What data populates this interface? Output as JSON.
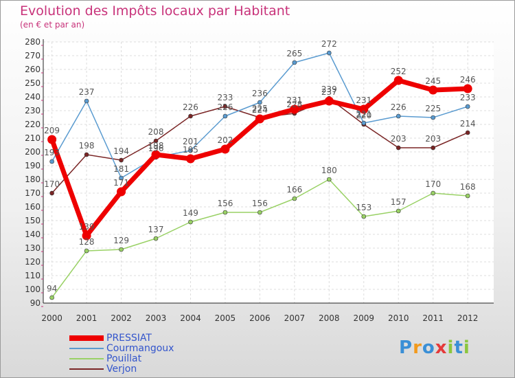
{
  "header": {
    "title": "Evolution des Impôts locaux par Habitant",
    "subtitle": "(en € et par an)"
  },
  "logo": {
    "text": "Proxiti",
    "colors": [
      "#3a8fd6",
      "#f29a1d",
      "#3a8fd6",
      "#e53a3a",
      "#8cc63e",
      "#3a8fd6",
      "#8cc63e"
    ]
  },
  "chart_data": {
    "type": "line",
    "title": "Evolution des Impôts locaux par Habitant",
    "subtitle": "(en € et par an)",
    "xlabel": "",
    "ylabel": "",
    "x": [
      "2000",
      "2001",
      "2002",
      "2003",
      "2004",
      "2005",
      "2006",
      "2007",
      "2008",
      "2009",
      "2010",
      "2011",
      "2012"
    ],
    "ylim": [
      90,
      280
    ],
    "yticks": [
      90,
      100,
      110,
      120,
      130,
      140,
      150,
      160,
      170,
      180,
      190,
      200,
      210,
      220,
      230,
      240,
      250,
      260,
      270,
      280
    ],
    "grid": true,
    "legend_position": "bottom-left",
    "series": [
      {
        "name": "PRESSIAT",
        "color": "#ee0000",
        "width": 7,
        "values": [
          209,
          139,
          171,
          198,
          195,
          202,
          224,
          231,
          237,
          231,
          252,
          245,
          246
        ]
      },
      {
        "name": "Courmangoux",
        "color": "#5a9bd0",
        "width": 1.5,
        "values": [
          193,
          237,
          181,
          196,
          201,
          226,
          236,
          265,
          272,
          221,
          226,
          225,
          233
        ]
      },
      {
        "name": "Pouillat",
        "color": "#99d165",
        "width": 1.5,
        "values": [
          94,
          128,
          129,
          137,
          149,
          156,
          156,
          166,
          180,
          153,
          157,
          170,
          168
        ]
      },
      {
        "name": "Verjon",
        "color": "#7a2525",
        "width": 1.5,
        "values": [
          170,
          198,
          194,
          208,
          226,
          233,
          225,
          228,
          239,
          220,
          203,
          203,
          214
        ]
      }
    ]
  }
}
